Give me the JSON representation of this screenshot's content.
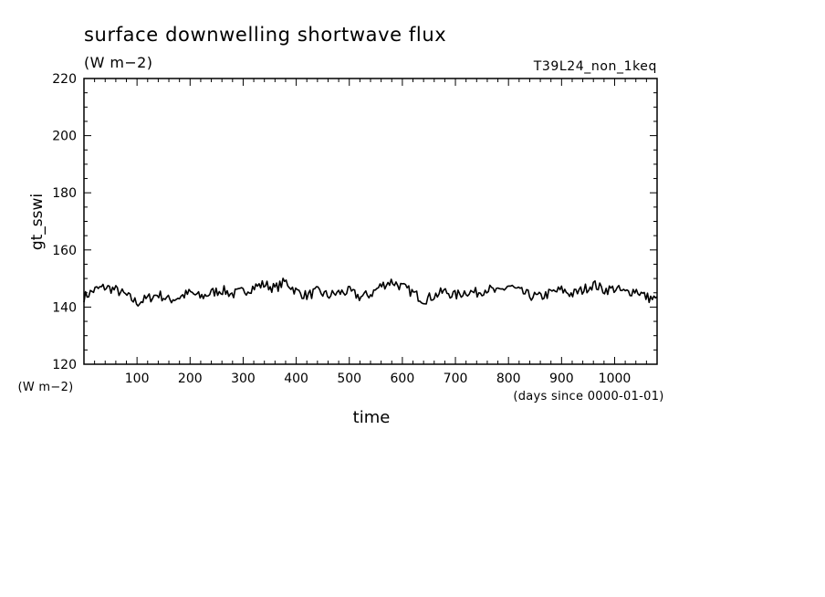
{
  "chart_data": {
    "type": "line",
    "title": "surface downwelling shortwave flux",
    "units": "(W m−2)",
    "run_label": "T39L24_non_1keq",
    "xlabel": "time",
    "x_units": "(days since 0000-01-01)",
    "ylabel": "gt_sswi",
    "y_units": "(W m−2)",
    "xlim": [
      0,
      1080
    ],
    "ylim": [
      120,
      220
    ],
    "x_ticks": [
      100,
      200,
      300,
      400,
      500,
      600,
      700,
      800,
      900,
      1000
    ],
    "y_ticks": [
      120,
      140,
      160,
      180,
      200,
      220
    ],
    "grid": false,
    "series": [
      {
        "color": "#000000",
        "x": [
          0,
          20,
          40,
          60,
          80,
          100,
          120,
          140,
          160,
          180,
          200,
          220,
          240,
          260,
          280,
          300,
          320,
          340,
          360,
          380,
          400,
          420,
          440,
          460,
          480,
          500,
          520,
          540,
          560,
          580,
          600,
          620,
          640,
          660,
          680,
          700,
          720,
          740,
          760,
          780,
          800,
          820,
          840,
          860,
          880,
          900,
          920,
          940,
          960,
          980,
          1000,
          1020,
          1040,
          1060,
          1080
        ],
        "y": [
          143.5,
          146.0,
          147.0,
          146.0,
          144.0,
          141.5,
          143.0,
          144.5,
          142.5,
          143.5,
          145.0,
          143.5,
          145.0,
          146.0,
          144.5,
          145.5,
          147.0,
          148.0,
          146.5,
          149.0,
          145.5,
          144.0,
          145.5,
          144.0,
          145.0,
          145.5,
          143.5,
          144.5,
          147.5,
          149.0,
          147.0,
          145.0,
          142.5,
          144.0,
          145.5,
          144.0,
          145.5,
          145.0,
          146.5,
          145.0,
          147.5,
          145.5,
          144.0,
          143.5,
          145.0,
          146.0,
          144.5,
          146.0,
          148.0,
          146.0,
          146.5,
          145.0,
          146.0,
          143.5,
          142.5
        ]
      }
    ]
  }
}
